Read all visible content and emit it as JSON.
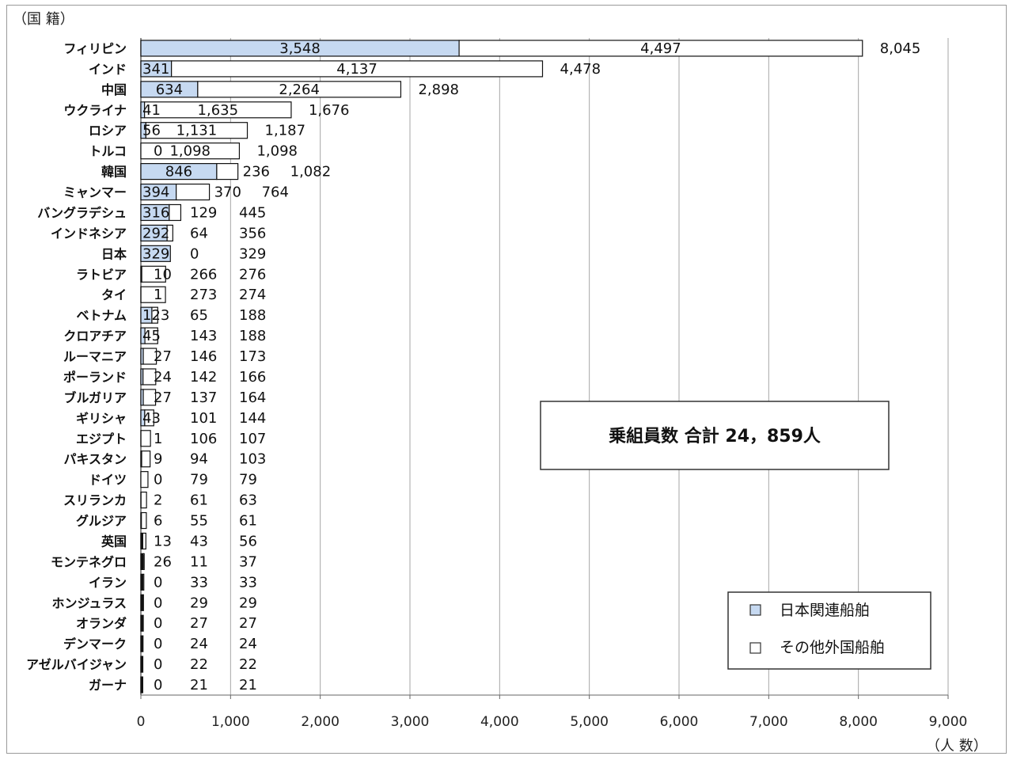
{
  "chart_data": {
    "type": "bar",
    "orientation": "horizontal",
    "stacked": true,
    "ylabel": "（国 籍）",
    "xlabel": "（人 数）",
    "xlim": [
      0,
      9000
    ],
    "xticks": [
      0,
      1000,
      2000,
      3000,
      4000,
      5000,
      6000,
      7000,
      8000,
      9000
    ],
    "xtick_labels": [
      "0",
      "1,000",
      "2,000",
      "3,000",
      "4,000",
      "5,000",
      "6,000",
      "7,000",
      "8,000",
      "9,000"
    ],
    "grid": "vertical",
    "legend_position": "bottom-right",
    "categories": [
      "フィリピン",
      "インド",
      "中国",
      "ウクライナ",
      "ロシア",
      "トルコ",
      "韓国",
      "ミャンマー",
      "バングラデシュ",
      "インドネシア",
      "日本",
      "ラトビア",
      "タイ",
      "ベトナム",
      "クロアチア",
      "ルーマニア",
      "ポーランド",
      "ブルガリア",
      "ギリシャ",
      "エジプト",
      "パキスタン",
      "ドイツ",
      "スリランカ",
      "グルジア",
      "英国",
      "モンテネグロ",
      "イラン",
      "ホンジュラス",
      "オランダ",
      "デンマーク",
      "アゼルバイジャン",
      "ガーナ"
    ],
    "series": [
      {
        "name": "日本関連船舶",
        "color": "#c6d9f1",
        "values": [
          3548,
          341,
          634,
          41,
          56,
          0,
          846,
          394,
          316,
          292,
          329,
          10,
          1,
          123,
          45,
          27,
          24,
          27,
          43,
          1,
          9,
          0,
          2,
          6,
          13,
          26,
          0,
          0,
          0,
          0,
          0,
          0
        ]
      },
      {
        "name": "その他外国船舶",
        "color": "#ffffff",
        "values": [
          4497,
          4137,
          2264,
          1635,
          1131,
          1098,
          236,
          370,
          129,
          64,
          0,
          266,
          273,
          65,
          143,
          146,
          142,
          137,
          101,
          106,
          94,
          79,
          61,
          55,
          43,
          11,
          33,
          29,
          27,
          24,
          22,
          21
        ]
      }
    ],
    "totals": [
      8045,
      4478,
      2898,
      1676,
      1187,
      1098,
      1082,
      764,
      445,
      356,
      329,
      276,
      274,
      188,
      188,
      173,
      166,
      164,
      144,
      107,
      103,
      79,
      63,
      61,
      56,
      37,
      33,
      29,
      27,
      24,
      22,
      21
    ],
    "annotation": "乗組員数 合計 24，859人"
  }
}
